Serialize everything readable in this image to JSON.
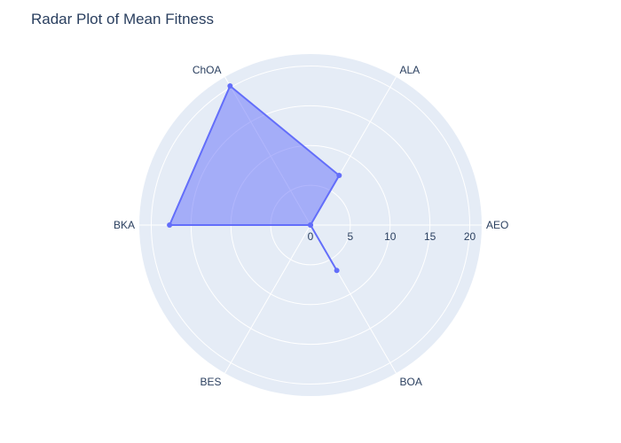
{
  "title": "Radar Plot of Mean Fitness",
  "chart_data": {
    "type": "radar",
    "title": "Radar Plot of Mean Fitness",
    "categories": [
      "AEO",
      "ALA",
      "ChOA",
      "BKA",
      "BES",
      "BOA"
    ],
    "series": [
      {
        "values": [
          0.0,
          7.2,
          20.2,
          17.7,
          0.0,
          6.6
        ]
      }
    ],
    "radial_ticks": [
      0,
      5,
      10,
      15,
      20
    ],
    "radial_range": [
      0,
      21.5
    ],
    "grid": true,
    "fill": "toself",
    "colors": {
      "line": "#636efa",
      "fill": "rgba(99,110,250,0.5)",
      "polar_bg": "#e5ecf6",
      "grid": "#ffffff",
      "text": "#2a3f5f"
    }
  }
}
